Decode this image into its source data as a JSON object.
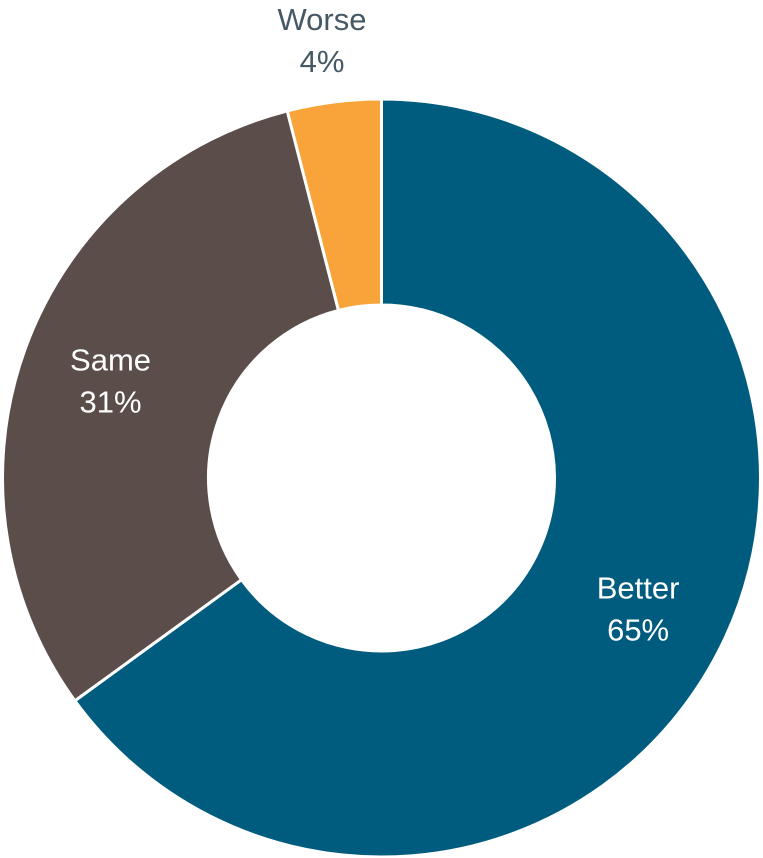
{
  "chart_data": {
    "type": "pie",
    "variant": "donut",
    "title": "",
    "slices": [
      {
        "name": "Better",
        "value": 65,
        "label": "65%",
        "color": "#005c7e",
        "label_color": "#ffffff"
      },
      {
        "name": "Same",
        "value": 31,
        "label": "31%",
        "color": "#5b4e4a",
        "label_color": "#ffffff"
      },
      {
        "name": "Worse",
        "value": 4,
        "label": "4%",
        "color": "#f8a43a",
        "label_color": "#475865"
      }
    ],
    "order": "clockwise-from-top",
    "legend": "none"
  }
}
